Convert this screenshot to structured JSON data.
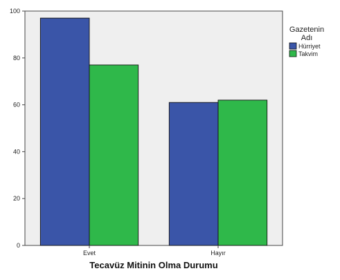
{
  "colors": {
    "plot_background": "#efefef",
    "hurriyet": "#3a55a8",
    "takvim": "#2fb84a",
    "bar_stroke": "#111111"
  },
  "chart_data": {
    "type": "bar",
    "categories": [
      "Evet",
      "Hayır"
    ],
    "series": [
      {
        "name": "Hürriyet",
        "values": [
          97,
          61
        ]
      },
      {
        "name": "Takvim",
        "values": [
          77,
          62
        ]
      }
    ],
    "title": "",
    "xlabel": "Tecavüz Mitinin Olma Durumu",
    "ylabel": "",
    "ylim": [
      0,
      100
    ],
    "yticks": [
      0,
      20,
      40,
      60,
      80,
      100
    ],
    "legend": {
      "title_lines": [
        "Gazetenin",
        "Adı"
      ],
      "placement": "right"
    },
    "grid": false
  }
}
